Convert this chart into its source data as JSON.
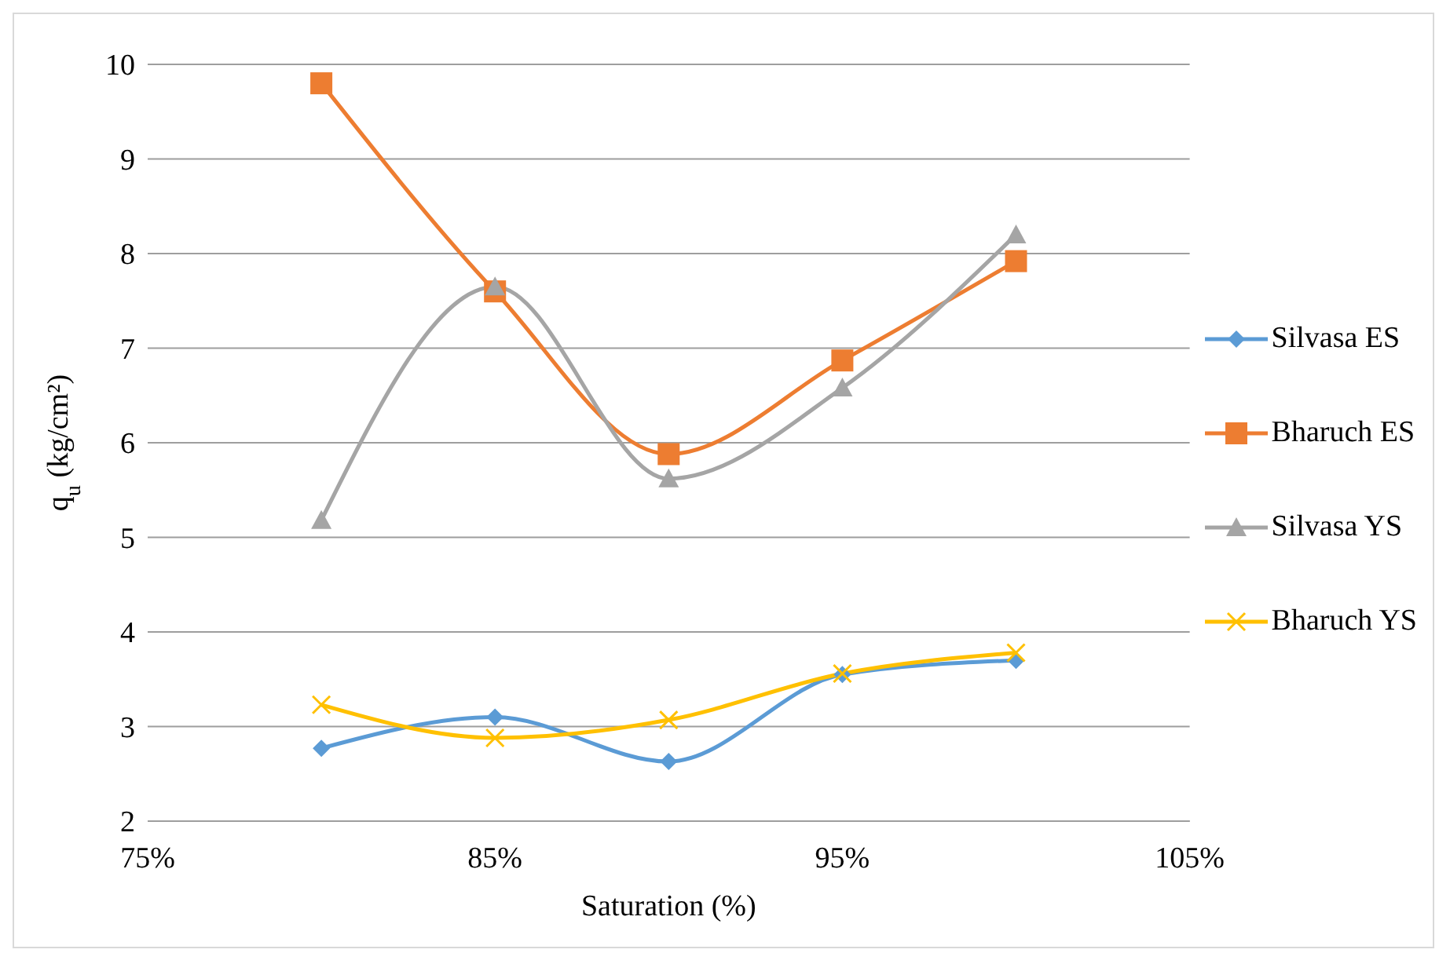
{
  "chart_data": {
    "type": "line",
    "xlabel": "Saturation (%)",
    "ylabel": "q$_{u}$ (kg/cm²)",
    "x": [
      80,
      85,
      90,
      95,
      100
    ],
    "series": [
      {
        "name": "Silvasa ES",
        "color": "#5b9bd5",
        "marker": "diamond",
        "values": [
          2.77,
          3.1,
          2.63,
          3.55,
          3.7
        ]
      },
      {
        "name": "Bharuch ES",
        "color": "#ed7d31",
        "marker": "square",
        "values": [
          9.8,
          7.6,
          5.88,
          6.87,
          7.92
        ]
      },
      {
        "name": "Silvasa YS",
        "color": "#a5a5a5",
        "marker": "triangle",
        "values": [
          5.18,
          7.65,
          5.62,
          6.58,
          8.2
        ]
      },
      {
        "name": "Bharuch YS",
        "color": "#ffc000",
        "marker": "cross",
        "values": [
          3.23,
          2.88,
          3.07,
          3.56,
          3.78
        ]
      }
    ],
    "xlim": [
      75,
      105
    ],
    "xticks": [
      {
        "value": 75,
        "label": "75%"
      },
      {
        "value": 85,
        "label": "85%"
      },
      {
        "value": 95,
        "label": "95%"
      },
      {
        "value": 105,
        "label": "105%"
      }
    ],
    "ylim": [
      2,
      10
    ],
    "yticks": [
      2,
      3,
      4,
      5,
      6,
      7,
      8,
      9,
      10
    ],
    "grid": "y",
    "legend": "right"
  }
}
